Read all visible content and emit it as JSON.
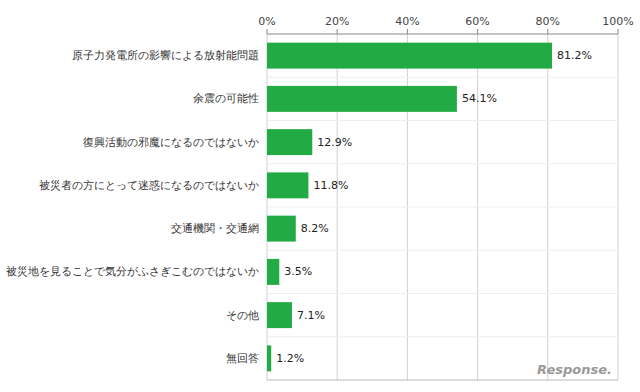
{
  "chart_data": {
    "type": "bar",
    "orientation": "horizontal",
    "categories": [
      "原子力発電所の影響による放射能問題",
      "余震の可能性",
      "復興活動の邪魔になるのではないか",
      "被災者の方にとって迷惑になるのではないか",
      "交通機関・交通網",
      "被災地を見ることで気分がふさぎこむのではないか",
      "その他",
      "無回答"
    ],
    "values": [
      81.2,
      54.1,
      12.9,
      11.8,
      8.2,
      3.5,
      7.1,
      1.2
    ],
    "value_labels": [
      "81.2%",
      "54.1%",
      "12.9%",
      "11.8%",
      "8.2%",
      "3.5%",
      "7.1%",
      "1.2%"
    ],
    "data_labels": true,
    "color": "#22aa44",
    "xlim": [
      0,
      100
    ],
    "xticks": [
      {
        "value": 0,
        "label": "0%"
      },
      {
        "value": 20,
        "label": "20%"
      },
      {
        "value": 40,
        "label": "40%"
      },
      {
        "value": 60,
        "label": "60%"
      },
      {
        "value": 80,
        "label": "80%"
      },
      {
        "value": 100,
        "label": "100%"
      }
    ],
    "grid": true,
    "annotations": [
      "Response."
    ]
  }
}
